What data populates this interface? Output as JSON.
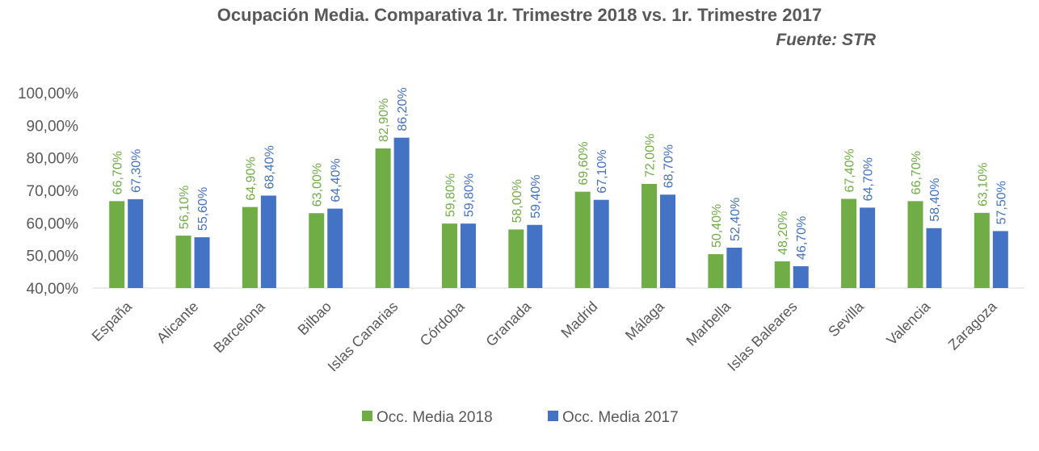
{
  "chart_data": {
    "type": "bar",
    "title": "Ocupación Media. Comparativa 1r. Trimestre 2018 vs. 1r. Trimestre 2017",
    "subtitle": "Fuente: STR",
    "categories": [
      "España",
      "Alicante",
      "Barcelona",
      "Bilbao",
      "Islas Canarias",
      "Córdoba",
      "Granada",
      "Madrid",
      "Málaga",
      "Marbella",
      "Islas Baleares",
      "Sevilla",
      "Valencia",
      "Zaragoza"
    ],
    "series": [
      {
        "name": "Occ. Media 2018",
        "color": "#70ad47",
        "values": [
          66.7,
          56.1,
          64.9,
          63.0,
          82.9,
          59.8,
          58.0,
          69.6,
          72.0,
          50.4,
          48.2,
          67.4,
          66.7,
          63.1
        ],
        "labels": [
          "66,70%",
          "56,10%",
          "64,90%",
          "63,00%",
          "82,90%",
          "59,80%",
          "58,00%",
          "69,60%",
          "72,00%",
          "50,40%",
          "48,20%",
          "67,40%",
          "66,70%",
          "63,10%"
        ]
      },
      {
        "name": "Occ. Media 2017",
        "color": "#4472c4",
        "values": [
          67.3,
          55.6,
          68.4,
          64.4,
          86.2,
          59.8,
          59.4,
          67.1,
          68.7,
          52.4,
          46.7,
          64.7,
          58.4,
          57.5
        ],
        "labels": [
          "67,30%",
          "55,60%",
          "68,40%",
          "64,40%",
          "86,20%",
          "59,80%",
          "59,40%",
          "67,10%",
          "68,70%",
          "52,40%",
          "46,70%",
          "64,70%",
          "58,40%",
          "57,50%"
        ]
      }
    ],
    "ylim": [
      40,
      100
    ],
    "yticks": [
      40,
      50,
      60,
      70,
      80,
      90,
      100
    ],
    "ytick_labels": [
      "40,00%",
      "50,00%",
      "60,00%",
      "70,00%",
      "80,00%",
      "90,00%",
      "100,00%"
    ],
    "grid": false,
    "legend": "bottom"
  }
}
